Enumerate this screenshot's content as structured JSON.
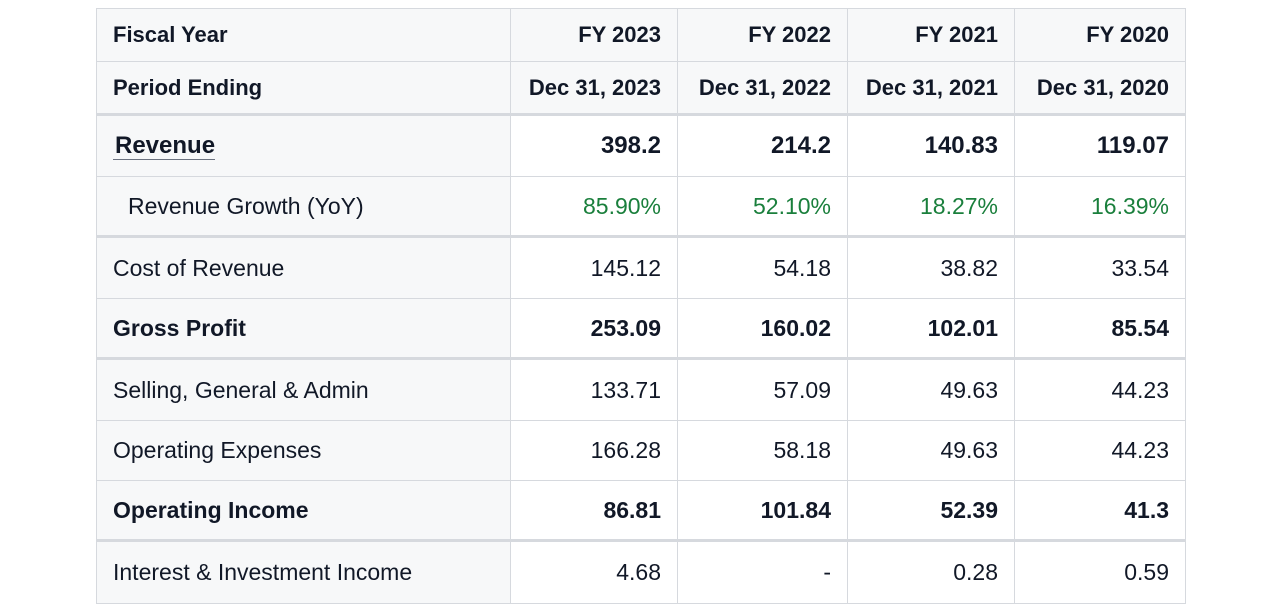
{
  "header": {
    "fiscal_year_label": "Fiscal Year",
    "period_ending_label": "Period Ending",
    "fiscal_years": [
      "FY 2023",
      "FY 2022",
      "FY 2021",
      "FY 2020"
    ],
    "period_endings": [
      "Dec 31, 2023",
      "Dec 31, 2022",
      "Dec 31, 2021",
      "Dec 31, 2020"
    ]
  },
  "rows": {
    "revenue": {
      "label": "Revenue",
      "values": [
        "398.2",
        "214.2",
        "140.83",
        "119.07"
      ]
    },
    "revenue_growth": {
      "label": "Revenue Growth (YoY)",
      "values": [
        "85.90%",
        "52.10%",
        "18.27%",
        "16.39%"
      ]
    },
    "cost_of_revenue": {
      "label": "Cost of Revenue",
      "values": [
        "145.12",
        "54.18",
        "38.82",
        "33.54"
      ]
    },
    "gross_profit": {
      "label": "Gross Profit",
      "values": [
        "253.09",
        "160.02",
        "102.01",
        "85.54"
      ]
    },
    "sga": {
      "label": "Selling, General & Admin",
      "values": [
        "133.71",
        "57.09",
        "49.63",
        "44.23"
      ]
    },
    "operating_expenses": {
      "label": "Operating Expenses",
      "values": [
        "166.28",
        "58.18",
        "49.63",
        "44.23"
      ]
    },
    "operating_income": {
      "label": "Operating Income",
      "values": [
        "86.81",
        "101.84",
        "52.39",
        "41.3"
      ]
    },
    "interest_investment_income": {
      "label": "Interest & Investment Income",
      "values": [
        "4.68",
        "-",
        "0.28",
        "0.59"
      ]
    }
  },
  "colors": {
    "positive_growth": "#1a7f3c",
    "border": "#d6d9de",
    "label_background": "#f7f8f9"
  }
}
